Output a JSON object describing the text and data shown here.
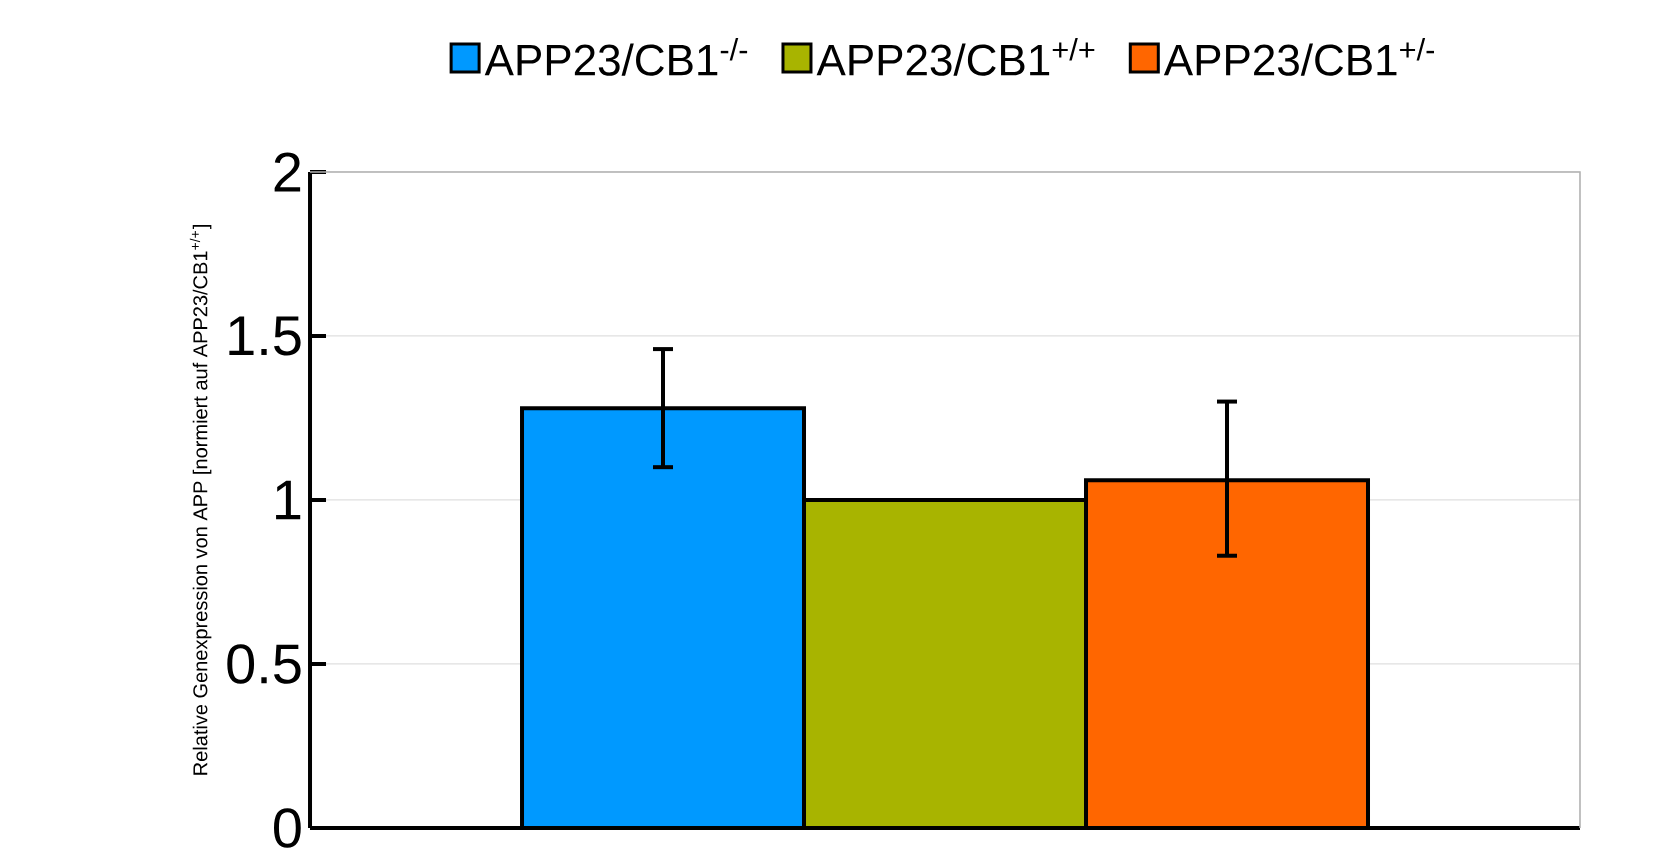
{
  "chart_data": {
    "type": "bar",
    "ylabel": "Relative Genexpression von APP [normiert auf APP23/CB1$^{+/+}$]",
    "categories": [
      null
    ],
    "series": [
      {
        "name": "APP23/CB1$^{-/-}$",
        "color": "#0099ff",
        "values": [
          1.28
        ],
        "errors": [
          [
            1.1,
            1.46
          ]
        ]
      },
      {
        "name": "APP23/CB1$^{+/+}$",
        "color": "#a8b400",
        "values": [
          1.0
        ],
        "errors": [
          null
        ]
      },
      {
        "name": "APP23/CB1$^{+/-}$",
        "color": "#ff6600",
        "values": [
          1.06
        ],
        "errors": [
          [
            0.83,
            1.3
          ]
        ]
      }
    ],
    "ylim": [
      0,
      2
    ],
    "yticks": [
      0,
      0.5,
      1,
      1.5,
      2
    ],
    "grid": "y",
    "legend": "top"
  }
}
